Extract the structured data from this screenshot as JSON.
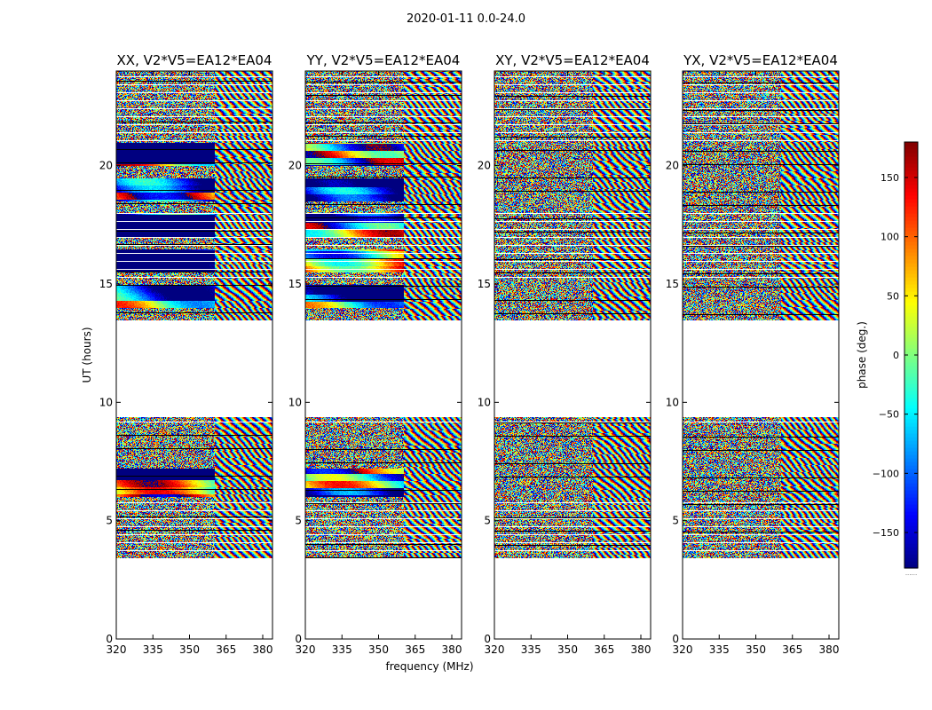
{
  "chart_data": {
    "type": "heatmap",
    "suptitle": "2020-01-11 0.0-24.0",
    "xlabel": "frequency (MHz)",
    "ylabel": "UT (hours)",
    "xlim": [
      320,
      384
    ],
    "ylim": [
      0,
      24
    ],
    "xticks": [
      320,
      335,
      350,
      365,
      380
    ],
    "yticks": [
      0,
      5,
      10,
      15,
      20
    ],
    "colormap": "jet",
    "colorbar": {
      "label": "phase (deg.)",
      "range": [
        -180,
        180
      ],
      "ticks": [
        150,
        100,
        50,
        0,
        -50,
        -100,
        -150
      ],
      "tick_labels": [
        "150",
        "100",
        "50",
        "0",
        "−50",
        "−100",
        "−150"
      ],
      "footer": "......"
    },
    "data_time_ranges_hours": [
      [
        3.4,
        9.4
      ],
      [
        13.5,
        24.0
      ]
    ],
    "panels": [
      {
        "title": "XX, V2*V5=EA12*EA04",
        "polarization": "XX"
      },
      {
        "title": "YY, V2*V5=EA12*EA04",
        "polarization": "YY"
      },
      {
        "title": "XY, V2*V5=EA12*EA04",
        "polarization": "XY"
      },
      {
        "title": "YX, V2*V5=EA12*EA04",
        "polarization": "YX"
      }
    ]
  }
}
